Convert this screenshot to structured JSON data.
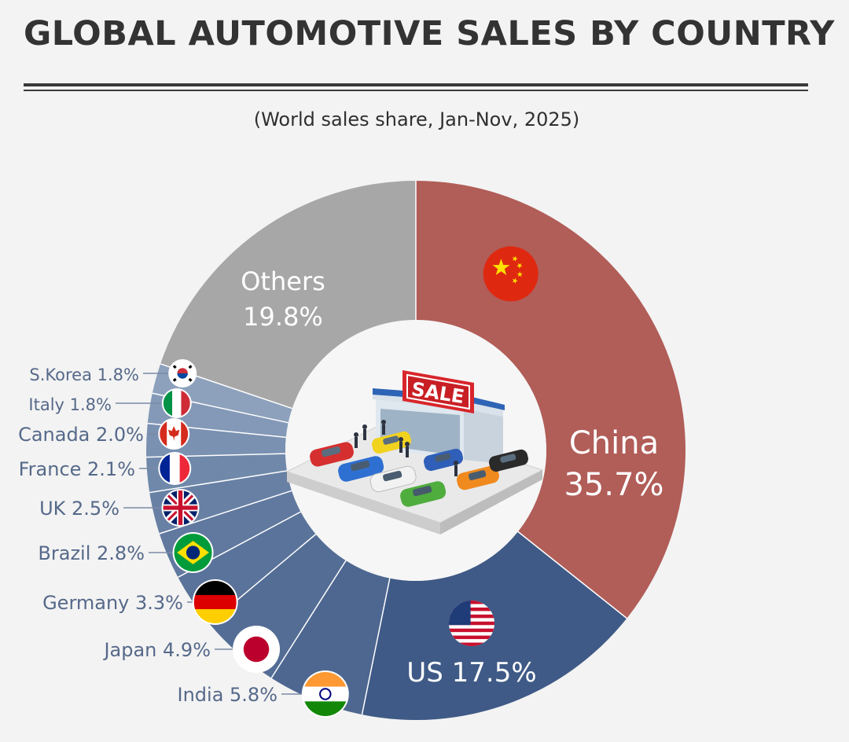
{
  "title": "GLOBAL AUTOMOTIVE SALES BY COUNTRY",
  "subtitle": "(World sales share, Jan-Nov, 2025)",
  "center_image": {
    "sign_text": "SALE"
  },
  "colors": {
    "china": "#b15d58",
    "us": "#3f5a86",
    "others": "#a7a7a7",
    "small": [
      "#4d6790",
      "#536d95",
      "#5a739a",
      "#61799f",
      "#6880a4",
      "#7089aa",
      "#7a91b1",
      "#8399b7",
      "#8da1bc"
    ],
    "small_label": "#56698a"
  },
  "chart_data": {
    "type": "pie",
    "variant": "donut",
    "title": "GLOBAL AUTOMOTIVE SALES BY COUNTRY",
    "subtitle": "(World sales share, Jan-Nov, 2025)",
    "unit": "%",
    "slices": [
      {
        "name": "China",
        "value": 35.7,
        "label": "China",
        "value_label": "35.7%",
        "flag": "china-flag-icon"
      },
      {
        "name": "US",
        "value": 17.5,
        "label": "US 17.5%",
        "flag": "usa-flag-icon"
      },
      {
        "name": "India",
        "value": 5.8,
        "label": "India 5.8%",
        "flag": "india-flag-icon"
      },
      {
        "name": "Japan",
        "value": 4.9,
        "label": "Japan 4.9%",
        "flag": "japan-flag-icon"
      },
      {
        "name": "Germany",
        "value": 3.3,
        "label": "Germany 3.3%",
        "flag": "germany-flag-icon"
      },
      {
        "name": "Brazil",
        "value": 2.8,
        "label": "Brazil 2.8%",
        "flag": "brazil-flag-icon"
      },
      {
        "name": "UK",
        "value": 2.5,
        "label": "UK 2.5%",
        "flag": "uk-flag-icon"
      },
      {
        "name": "France",
        "value": 2.1,
        "label": "France 2.1%",
        "flag": "france-flag-icon"
      },
      {
        "name": "Canada",
        "value": 2.0,
        "label": "Canada 2.0%",
        "flag": "canada-flag-icon"
      },
      {
        "name": "Italy",
        "value": 1.8,
        "label": "Italy 1.8%",
        "flag": "italy-flag-icon"
      },
      {
        "name": "S.Korea",
        "value": 1.8,
        "label": "S.Korea 1.8%",
        "flag": "south-korea-flag-icon"
      },
      {
        "name": "Others",
        "value": 19.8,
        "label": "Others",
        "value_label": "19.8%"
      }
    ]
  }
}
